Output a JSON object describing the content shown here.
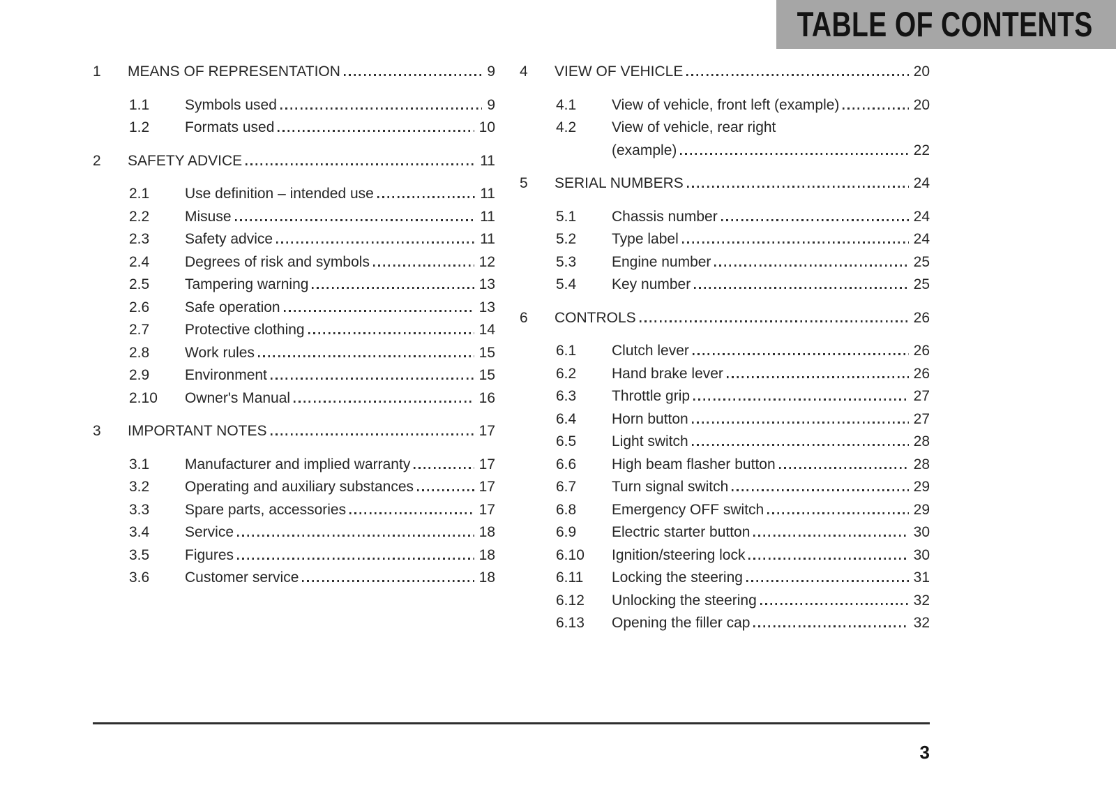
{
  "header": {
    "title": "TABLE OF CONTENTS"
  },
  "colors": {
    "header_bg": "#a6a6a6",
    "text": "#262626",
    "rule": "#2e2e2e"
  },
  "footer": {
    "page_number": "3"
  },
  "columns": [
    {
      "sections": [
        {
          "num": "1",
          "title": "MEANS OF REPRESENTATION",
          "page": "9",
          "items": [
            {
              "num": "1.1",
              "title": "Symbols used",
              "page": "9"
            },
            {
              "num": "1.2",
              "title": "Formats used",
              "page": "10"
            }
          ]
        },
        {
          "num": "2",
          "title": "SAFETY ADVICE",
          "page": "11",
          "items": [
            {
              "num": "2.1",
              "title": "Use definition – intended use",
              "page": "11"
            },
            {
              "num": "2.2",
              "title": "Misuse",
              "page": "11"
            },
            {
              "num": "2.3",
              "title": "Safety advice",
              "page": "11"
            },
            {
              "num": "2.4",
              "title": "Degrees of risk and symbols",
              "page": "12"
            },
            {
              "num": "2.5",
              "title": "Tampering warning",
              "page": "13"
            },
            {
              "num": "2.6",
              "title": "Safe operation",
              "page": "13"
            },
            {
              "num": "2.7",
              "title": "Protective clothing",
              "page": "14"
            },
            {
              "num": "2.8",
              "title": "Work rules",
              "page": "15"
            },
            {
              "num": "2.9",
              "title": "Environment",
              "page": "15"
            },
            {
              "num": "2.10",
              "title": "Owner's Manual",
              "page": "16"
            }
          ]
        },
        {
          "num": "3",
          "title": "IMPORTANT NOTES",
          "page": "17",
          "items": [
            {
              "num": "3.1",
              "title": "Manufacturer and implied warranty",
              "page": "17"
            },
            {
              "num": "3.2",
              "title": "Operating and auxiliary substances",
              "page": "17"
            },
            {
              "num": "3.3",
              "title": "Spare parts, accessories",
              "page": "17"
            },
            {
              "num": "3.4",
              "title": "Service",
              "page": "18"
            },
            {
              "num": "3.5",
              "title": "Figures",
              "page": "18"
            },
            {
              "num": "3.6",
              "title": "Customer service",
              "page": "18"
            }
          ]
        }
      ]
    },
    {
      "sections": [
        {
          "num": "4",
          "title": "VIEW OF VEHICLE",
          "page": "20",
          "items": [
            {
              "num": "4.1",
              "title": "View of vehicle, front left (example)",
              "page": "20"
            },
            {
              "num": "4.2",
              "title": "View of vehicle, rear right",
              "title2": "(example)",
              "page": "22"
            }
          ]
        },
        {
          "num": "5",
          "title": "SERIAL NUMBERS",
          "page": "24",
          "items": [
            {
              "num": "5.1",
              "title": "Chassis number",
              "page": "24"
            },
            {
              "num": "5.2",
              "title": "Type label",
              "page": "24"
            },
            {
              "num": "5.3",
              "title": "Engine number",
              "page": "25"
            },
            {
              "num": "5.4",
              "title": "Key number",
              "page": "25"
            }
          ]
        },
        {
          "num": "6",
          "title": "CONTROLS",
          "page": "26",
          "items": [
            {
              "num": "6.1",
              "title": "Clutch lever",
              "page": "26"
            },
            {
              "num": "6.2",
              "title": "Hand brake lever",
              "page": "26"
            },
            {
              "num": "6.3",
              "title": "Throttle grip",
              "page": "27"
            },
            {
              "num": "6.4",
              "title": "Horn button",
              "page": "27"
            },
            {
              "num": "6.5",
              "title": "Light switch",
              "page": "28"
            },
            {
              "num": "6.6",
              "title": "High beam flasher button",
              "page": "28"
            },
            {
              "num": "6.7",
              "title": "Turn signal switch",
              "page": "29"
            },
            {
              "num": "6.8",
              "title": "Emergency OFF switch",
              "page": "29"
            },
            {
              "num": "6.9",
              "title": "Electric starter button",
              "page": "30"
            },
            {
              "num": "6.10",
              "title": "Ignition/steering lock",
              "page": "30"
            },
            {
              "num": "6.11",
              "title": "Locking the steering",
              "page": "31"
            },
            {
              "num": "6.12",
              "title": "Unlocking the steering",
              "page": "32"
            },
            {
              "num": "6.13",
              "title": "Opening the filler cap",
              "page": "32"
            }
          ]
        }
      ]
    }
  ]
}
